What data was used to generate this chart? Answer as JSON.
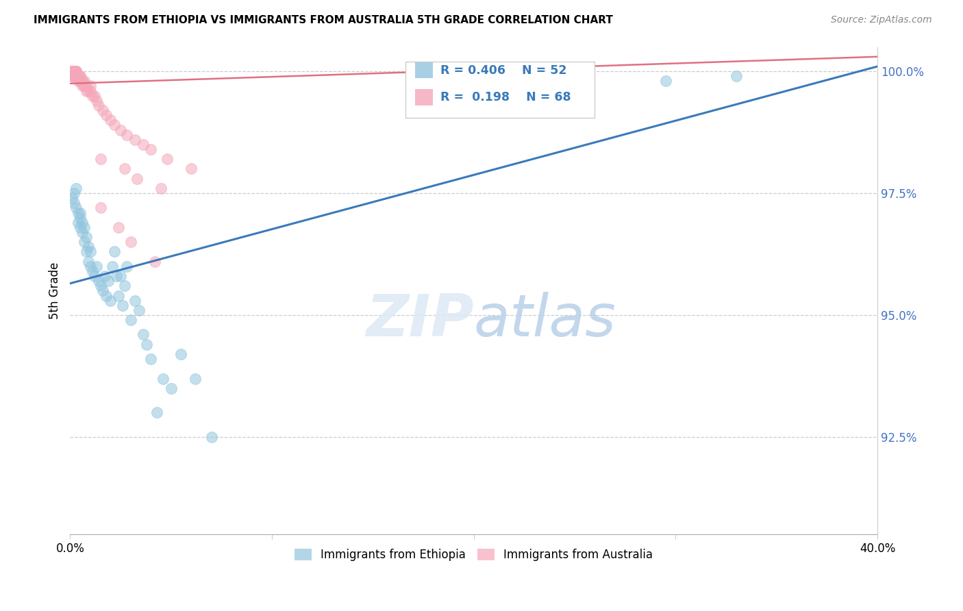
{
  "title": "IMMIGRANTS FROM ETHIOPIA VS IMMIGRANTS FROM AUSTRALIA 5TH GRADE CORRELATION CHART",
  "source": "Source: ZipAtlas.com",
  "ylabel": "5th Grade",
  "xlim": [
    0.0,
    0.4
  ],
  "ylim": [
    0.905,
    1.005
  ],
  "yticks": [
    0.925,
    0.95,
    0.975,
    1.0
  ],
  "ytick_labels": [
    "92.5%",
    "95.0%",
    "97.5%",
    "100.0%"
  ],
  "xticks": [
    0.0,
    0.1,
    0.2,
    0.3,
    0.4
  ],
  "xtick_labels": [
    "0.0%",
    "",
    "",
    "",
    "40.0%"
  ],
  "blue_color": "#92c5de",
  "pink_color": "#f4a7b9",
  "blue_line_color": "#3a7aba",
  "pink_line_color": "#e07080",
  "watermark_zip": "ZIP",
  "watermark_atlas": "atlas",
  "legend_label_blue": "Immigrants from Ethiopia",
  "legend_label_pink": "Immigrants from Australia",
  "blue_line_x": [
    0.0,
    0.4
  ],
  "blue_line_y": [
    0.9565,
    1.001
  ],
  "pink_line_x": [
    0.0,
    0.4
  ],
  "pink_line_y": [
    0.9975,
    1.003
  ],
  "ethiopia_x": [
    0.001,
    0.002,
    0.002,
    0.003,
    0.003,
    0.004,
    0.004,
    0.005,
    0.005,
    0.005,
    0.006,
    0.006,
    0.007,
    0.007,
    0.008,
    0.008,
    0.009,
    0.009,
    0.01,
    0.01,
    0.011,
    0.012,
    0.013,
    0.014,
    0.015,
    0.016,
    0.017,
    0.018,
    0.019,
    0.02,
    0.021,
    0.022,
    0.023,
    0.024,
    0.025,
    0.026,
    0.027,
    0.028,
    0.03,
    0.032,
    0.034,
    0.036,
    0.038,
    0.04,
    0.043,
    0.046,
    0.05,
    0.055,
    0.062,
    0.07,
    0.295,
    0.33
  ],
  "ethiopia_y": [
    0.974,
    0.975,
    0.973,
    0.972,
    0.976,
    0.971,
    0.969,
    0.97,
    0.968,
    0.971,
    0.967,
    0.969,
    0.965,
    0.968,
    0.966,
    0.963,
    0.964,
    0.961,
    0.963,
    0.96,
    0.959,
    0.958,
    0.96,
    0.957,
    0.956,
    0.955,
    0.958,
    0.954,
    0.957,
    0.953,
    0.96,
    0.963,
    0.958,
    0.954,
    0.958,
    0.952,
    0.956,
    0.96,
    0.949,
    0.953,
    0.951,
    0.946,
    0.944,
    0.941,
    0.93,
    0.937,
    0.935,
    0.942,
    0.937,
    0.925,
    0.998,
    0.999
  ],
  "australia_x": [
    0.001,
    0.001,
    0.001,
    0.001,
    0.001,
    0.001,
    0.001,
    0.001,
    0.001,
    0.002,
    0.002,
    0.002,
    0.002,
    0.002,
    0.002,
    0.002,
    0.002,
    0.003,
    0.003,
    0.003,
    0.003,
    0.003,
    0.003,
    0.003,
    0.003,
    0.004,
    0.004,
    0.004,
    0.004,
    0.004,
    0.005,
    0.005,
    0.005,
    0.005,
    0.006,
    0.006,
    0.006,
    0.007,
    0.007,
    0.007,
    0.008,
    0.008,
    0.009,
    0.01,
    0.01,
    0.011,
    0.012,
    0.013,
    0.014,
    0.016,
    0.018,
    0.02,
    0.022,
    0.025,
    0.028,
    0.032,
    0.036,
    0.04,
    0.048,
    0.06,
    0.015,
    0.027,
    0.033,
    0.045,
    0.015,
    0.024,
    0.03,
    0.042
  ],
  "australia_y": [
    0.999,
    0.999,
    0.999,
    1.0,
    1.0,
    1.0,
    1.0,
    1.0,
    1.0,
    0.999,
    0.999,
    0.999,
    1.0,
    1.0,
    1.0,
    1.0,
    1.0,
    0.999,
    0.999,
    0.999,
    0.999,
    1.0,
    1.0,
    1.0,
    1.0,
    0.998,
    0.999,
    0.999,
    0.999,
    0.999,
    0.998,
    0.998,
    0.999,
    0.999,
    0.997,
    0.998,
    0.998,
    0.997,
    0.997,
    0.998,
    0.996,
    0.997,
    0.996,
    0.996,
    0.997,
    0.995,
    0.995,
    0.994,
    0.993,
    0.992,
    0.991,
    0.99,
    0.989,
    0.988,
    0.987,
    0.986,
    0.985,
    0.984,
    0.982,
    0.98,
    0.982,
    0.98,
    0.978,
    0.976,
    0.972,
    0.968,
    0.965,
    0.961
  ]
}
